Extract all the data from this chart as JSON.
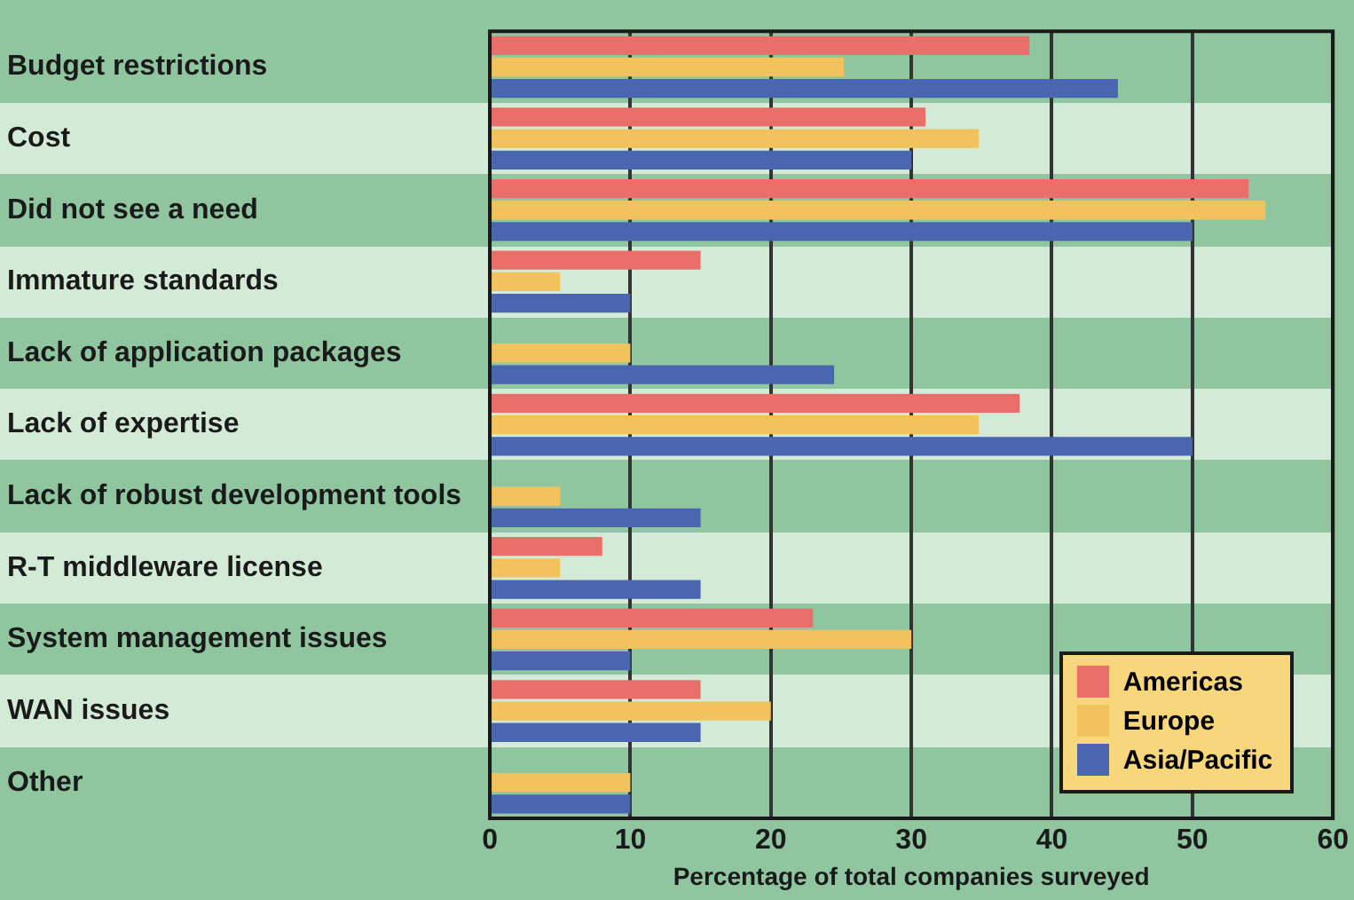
{
  "chart_data": {
    "type": "bar",
    "orientation": "horizontal",
    "xlabel": "Percentage of total companies surveyed",
    "categories": [
      "Budget restrictions",
      "Cost",
      "Did not see a need",
      "Immature standards",
      "Lack of application packages",
      "Lack of expertise",
      "Lack of robust development tools",
      "R-T middleware license",
      "System management issues",
      "WAN issues",
      "Other"
    ],
    "series": [
      {
        "name": "Americas",
        "color": "#ea6f6a",
        "values": [
          38.4,
          31,
          54,
          15,
          null,
          37.7,
          null,
          8,
          23,
          15,
          null
        ]
      },
      {
        "name": "Europe",
        "color": "#f2c35c",
        "values": [
          25.2,
          34.8,
          55.2,
          5,
          10,
          34.8,
          5,
          5,
          30,
          20,
          10
        ]
      },
      {
        "name": "Asia/Pacific",
        "color": "#4a66b0",
        "values": [
          44.7,
          30,
          50,
          10,
          24.5,
          50,
          15,
          15,
          10,
          15,
          10
        ]
      }
    ],
    "xlim": [
      0,
      60
    ],
    "xticks": [
      0,
      10,
      20,
      30,
      40,
      50,
      60
    ],
    "grid": "x",
    "legend": "bottom right"
  }
}
